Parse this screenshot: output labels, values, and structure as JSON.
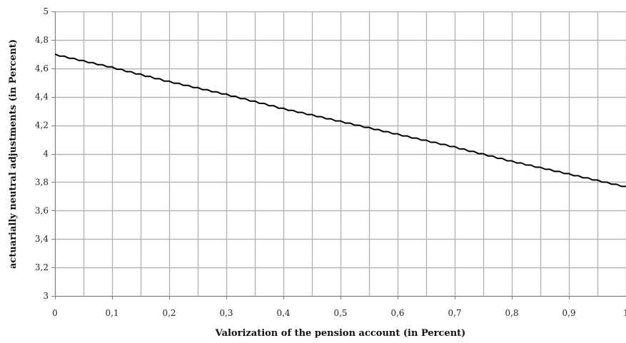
{
  "chart_data": {
    "type": "line",
    "title": "",
    "xlabel": "Valorization of the pension account (in Percent)",
    "ylabel": "actuarially neutral adjustments (in Percent)",
    "xlim": [
      0,
      1
    ],
    "ylim": [
      3,
      5
    ],
    "grid": true,
    "legend": "none",
    "x_ticks": [
      "0",
      "0,1",
      "0,2",
      "0,3",
      "0,4",
      "0,5",
      "0,6",
      "0,7",
      "0,8",
      "0,9",
      "1"
    ],
    "y_ticks": [
      "3",
      "3,2",
      "3,4",
      "3,6",
      "3,8",
      "4",
      "4,2",
      "4,4",
      "4,6",
      "4,8",
      "5"
    ],
    "series": [
      {
        "values": [
          {
            "x": 0.0,
            "y": 4.7
          },
          {
            "x": 0.1,
            "y": 4.61
          },
          {
            "x": 0.2,
            "y": 4.51
          },
          {
            "x": 0.3,
            "y": 4.42
          },
          {
            "x": 0.4,
            "y": 4.32
          },
          {
            "x": 0.5,
            "y": 4.23
          },
          {
            "x": 0.6,
            "y": 4.14
          },
          {
            "x": 0.7,
            "y": 4.05
          },
          {
            "x": 0.8,
            "y": 3.95
          },
          {
            "x": 0.9,
            "y": 3.86
          },
          {
            "x": 1.0,
            "y": 3.77
          }
        ]
      }
    ],
    "colors": {
      "line": "#000000",
      "grid": "#b3b3b3",
      "axis": "#7f7f7f"
    }
  }
}
